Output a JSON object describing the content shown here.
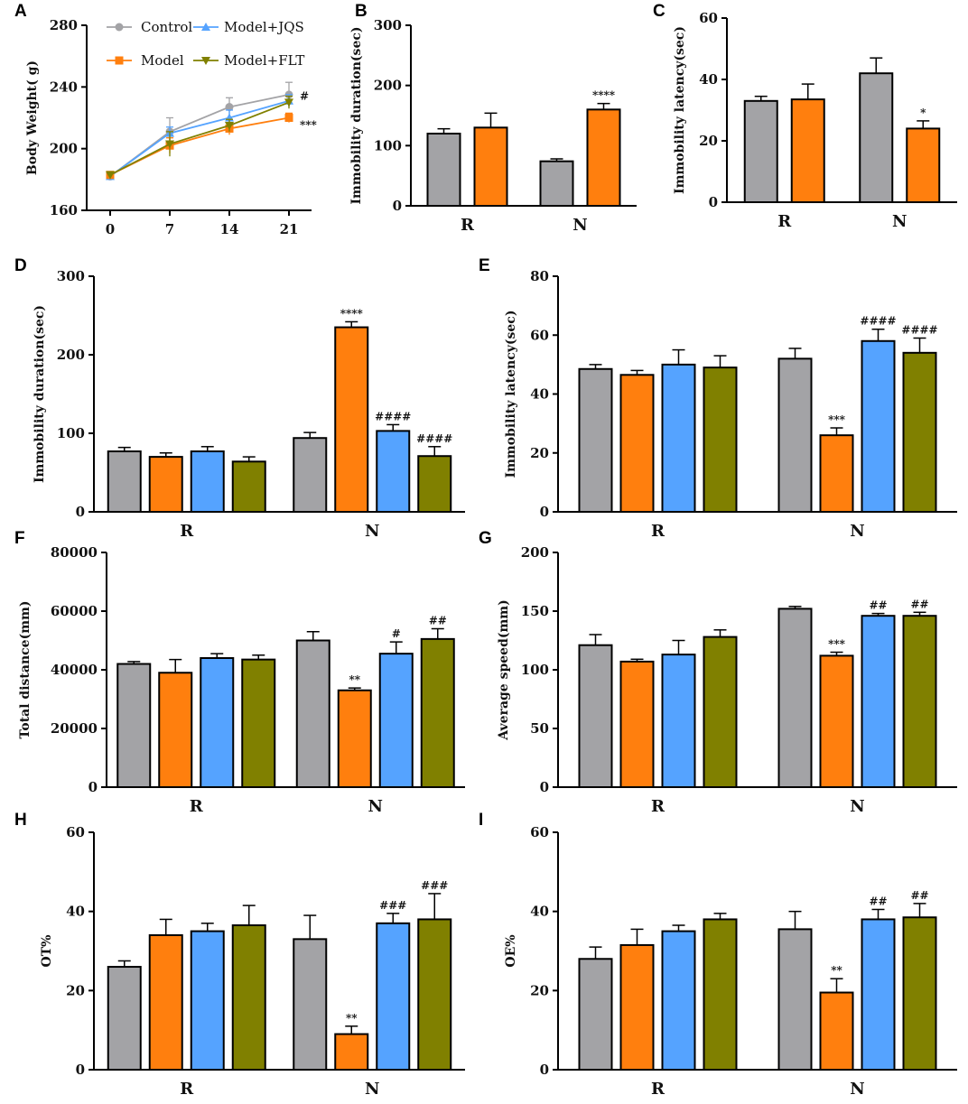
{
  "colors": {
    "Control": "#a3a3a6",
    "Model": "#ff7f0e",
    "Model+JQS": "#55a3ff",
    "Model+FLT": "#808000"
  },
  "legend": [
    "Control",
    "Model+JQS",
    "Model",
    "Model+FLT"
  ],
  "chart_data": [
    {
      "id": "A",
      "type": "line",
      "ylabel": "Body Weight( g)",
      "x": [
        "0",
        "7",
        "14",
        "21"
      ],
      "ylim": [
        160,
        280
      ],
      "yticks": [
        160,
        200,
        240,
        280
      ],
      "series": [
        {
          "name": "Control",
          "values": [
            182,
            211,
            227,
            235
          ],
          "errors": [
            2,
            9,
            6,
            8
          ]
        },
        {
          "name": "Model+JQS",
          "values": [
            182,
            210,
            220,
            231
          ],
          "errors": [
            2,
            4,
            5,
            4
          ]
        },
        {
          "name": "Model",
          "values": [
            183,
            202,
            213,
            220
          ],
          "errors": [
            2,
            5,
            4,
            3
          ]
        },
        {
          "name": "Model+FLT",
          "values": [
            183,
            203,
            215,
            230
          ],
          "errors": [
            2,
            8,
            4,
            4
          ]
        }
      ],
      "annotations": [
        {
          "text": "#",
          "series": "Model+JQS"
        },
        {
          "text": "***",
          "series": "Model"
        }
      ]
    },
    {
      "id": "B",
      "type": "bar",
      "ylabel": "Immobility duration(sec)",
      "categories": [
        "R",
        "N"
      ],
      "ylim": [
        0,
        300
      ],
      "yticks": [
        0,
        100,
        200,
        300
      ],
      "series": [
        {
          "name": "Control",
          "values": [
            120,
            74
          ],
          "errors": [
            8,
            4
          ],
          "labels": [
            "",
            ""
          ]
        },
        {
          "name": "Model",
          "values": [
            130,
            160
          ],
          "errors": [
            24,
            10
          ],
          "labels": [
            "",
            "****"
          ]
        }
      ]
    },
    {
      "id": "C",
      "type": "bar",
      "ylabel": "Immobility latency(sec)",
      "categories": [
        "R",
        "N"
      ],
      "ylim": [
        0,
        60
      ],
      "yticks": [
        0,
        20,
        40,
        60
      ],
      "series": [
        {
          "name": "Control",
          "values": [
            33,
            42
          ],
          "errors": [
            1.5,
            5
          ],
          "labels": [
            "",
            ""
          ]
        },
        {
          "name": "Model",
          "values": [
            33.5,
            24
          ],
          "errors": [
            5,
            2.5
          ],
          "labels": [
            "",
            "*"
          ]
        }
      ]
    },
    {
      "id": "D",
      "type": "bar",
      "ylabel": "Immobility duration(sec)",
      "categories": [
        "R",
        "N"
      ],
      "ylim": [
        0,
        300
      ],
      "yticks": [
        0,
        100,
        200,
        300
      ],
      "series": [
        {
          "name": "Control",
          "values": [
            77,
            94
          ],
          "errors": [
            5,
            7
          ],
          "labels": [
            "",
            ""
          ]
        },
        {
          "name": "Model",
          "values": [
            70,
            235
          ],
          "errors": [
            5,
            7
          ],
          "labels": [
            "",
            "****"
          ]
        },
        {
          "name": "Model+JQS",
          "values": [
            77,
            103
          ],
          "errors": [
            6,
            8
          ],
          "labels": [
            "",
            "####"
          ]
        },
        {
          "name": "Model+FLT",
          "values": [
            64,
            71
          ],
          "errors": [
            6,
            12
          ],
          "labels": [
            "",
            "####"
          ]
        }
      ]
    },
    {
      "id": "E",
      "type": "bar",
      "ylabel": "Immobility latency(sec)",
      "categories": [
        "R",
        "N"
      ],
      "ylim": [
        0,
        80
      ],
      "yticks": [
        0,
        20,
        40,
        60,
        80
      ],
      "series": [
        {
          "name": "Control",
          "values": [
            48.5,
            52
          ],
          "errors": [
            1.5,
            3.5
          ],
          "labels": [
            "",
            ""
          ]
        },
        {
          "name": "Model",
          "values": [
            46.5,
            26
          ],
          "errors": [
            1.5,
            2.5
          ],
          "labels": [
            "",
            "***"
          ]
        },
        {
          "name": "Model+JQS",
          "values": [
            50,
            58
          ],
          "errors": [
            5,
            4
          ],
          "labels": [
            "",
            "####"
          ]
        },
        {
          "name": "Model+FLT",
          "values": [
            49,
            54
          ],
          "errors": [
            4,
            5
          ],
          "labels": [
            "",
            "####"
          ]
        }
      ]
    },
    {
      "id": "F",
      "type": "bar",
      "ylabel": "Total distance(mm)",
      "categories": [
        "R",
        "N"
      ],
      "ylim": [
        0,
        80000
      ],
      "yticks": [
        0,
        20000,
        40000,
        60000,
        80000
      ],
      "series": [
        {
          "name": "Control",
          "values": [
            42000,
            50000
          ],
          "errors": [
            800,
            3000
          ],
          "labels": [
            "",
            ""
          ]
        },
        {
          "name": "Model",
          "values": [
            39000,
            33000
          ],
          "errors": [
            4500,
            800
          ],
          "labels": [
            "",
            "**"
          ]
        },
        {
          "name": "Model+JQS",
          "values": [
            44000,
            45500
          ],
          "errors": [
            1500,
            4000
          ],
          "labels": [
            "",
            "#"
          ]
        },
        {
          "name": "Model+FLT",
          "values": [
            43500,
            50500
          ],
          "errors": [
            1500,
            3500
          ],
          "labels": [
            "",
            "##"
          ]
        }
      ]
    },
    {
      "id": "G",
      "type": "bar",
      "ylabel": "Average speed(mm)",
      "categories": [
        "R",
        "N"
      ],
      "ylim": [
        0,
        200
      ],
      "yticks": [
        0,
        50,
        100,
        150,
        200
      ],
      "series": [
        {
          "name": "Control",
          "values": [
            121,
            152
          ],
          "errors": [
            9,
            2
          ],
          "labels": [
            "",
            ""
          ]
        },
        {
          "name": "Model",
          "values": [
            107,
            112
          ],
          "errors": [
            2,
            3
          ],
          "labels": [
            "",
            "***"
          ]
        },
        {
          "name": "Model+JQS",
          "values": [
            113,
            146
          ],
          "errors": [
            12,
            2
          ],
          "labels": [
            "",
            "##"
          ]
        },
        {
          "name": "Model+FLT",
          "values": [
            128,
            146
          ],
          "errors": [
            6,
            3
          ],
          "labels": [
            "",
            "##"
          ]
        }
      ]
    },
    {
      "id": "H",
      "type": "bar",
      "ylabel": "OT%",
      "categories": [
        "R",
        "N"
      ],
      "ylim": [
        0,
        60
      ],
      "yticks": [
        0,
        20,
        40,
        60
      ],
      "series": [
        {
          "name": "Control",
          "values": [
            26,
            33
          ],
          "errors": [
            1.5,
            6
          ],
          "labels": [
            "",
            ""
          ]
        },
        {
          "name": "Model",
          "values": [
            34,
            9
          ],
          "errors": [
            4,
            2
          ],
          "labels": [
            "",
            "**"
          ]
        },
        {
          "name": "Model+JQS",
          "values": [
            35,
            37
          ],
          "errors": [
            2,
            2.5
          ],
          "labels": [
            "",
            "###"
          ]
        },
        {
          "name": "Model+FLT",
          "values": [
            36.5,
            38
          ],
          "errors": [
            5,
            6.5
          ],
          "labels": [
            "",
            "###"
          ]
        }
      ]
    },
    {
      "id": "I",
      "type": "bar",
      "ylabel": "OE%",
      "categories": [
        "R",
        "N"
      ],
      "ylim": [
        0,
        60
      ],
      "yticks": [
        0,
        20,
        40,
        60
      ],
      "series": [
        {
          "name": "Control",
          "values": [
            28,
            35.5
          ],
          "errors": [
            3,
            4.5
          ],
          "labels": [
            "",
            ""
          ]
        },
        {
          "name": "Model",
          "values": [
            31.5,
            19.5
          ],
          "errors": [
            4,
            3.5
          ],
          "labels": [
            "",
            "**"
          ]
        },
        {
          "name": "Model+JQS",
          "values": [
            35,
            38
          ],
          "errors": [
            1.5,
            2.5
          ],
          "labels": [
            "",
            "##"
          ]
        },
        {
          "name": "Model+FLT",
          "values": [
            38,
            38.5
          ],
          "errors": [
            1.5,
            3.5
          ],
          "labels": [
            "",
            "##"
          ]
        }
      ]
    }
  ]
}
